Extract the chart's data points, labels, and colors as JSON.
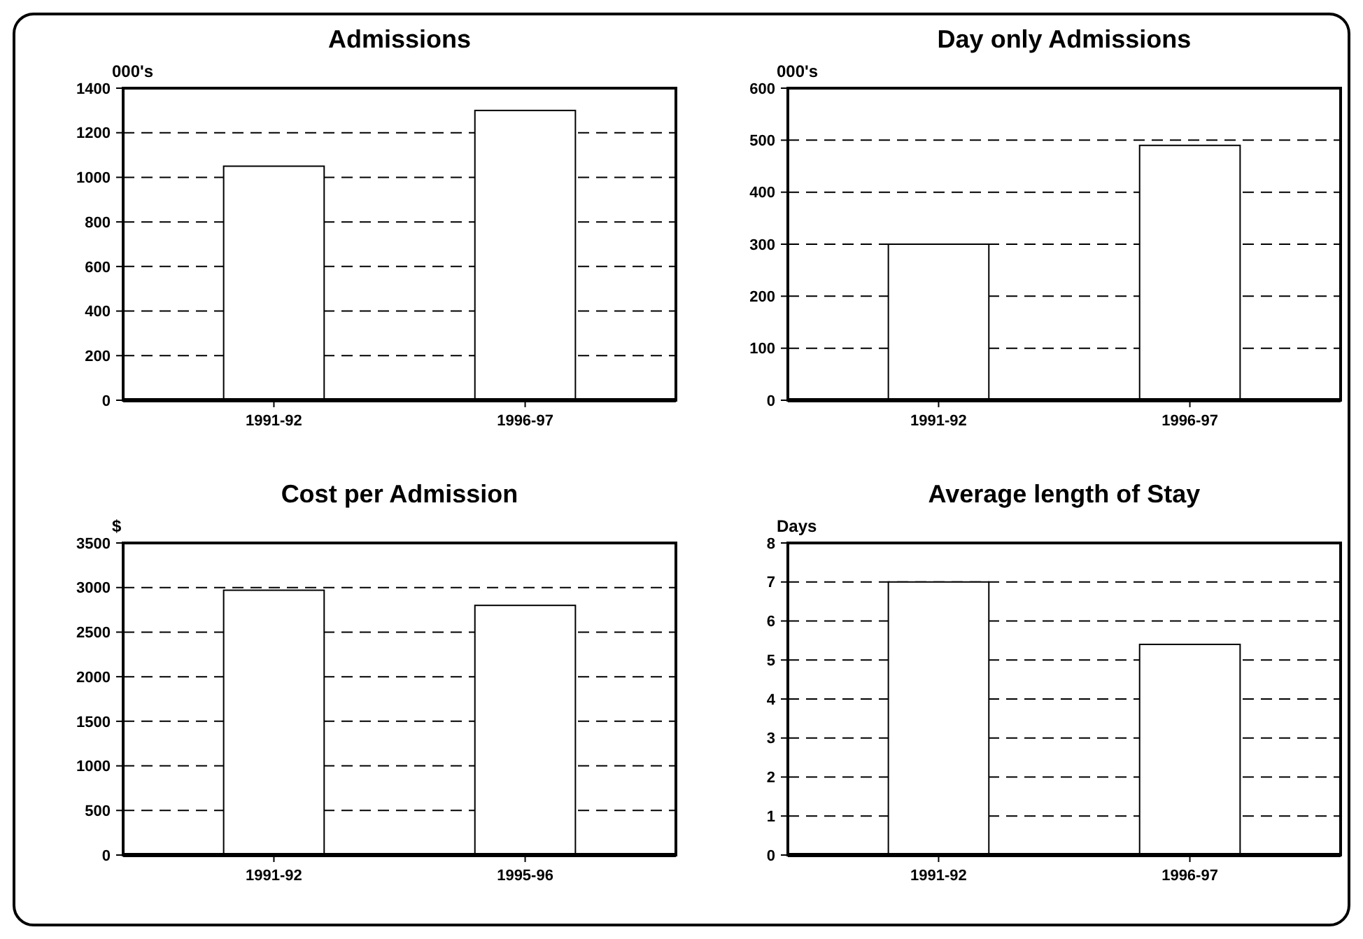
{
  "chart_data": [
    {
      "type": "bar",
      "title": "Admissions",
      "ylabel": "000's",
      "categories": [
        "1991-92",
        "1996-97"
      ],
      "values": [
        1050,
        1300
      ],
      "color": "#ffffff",
      "ylim": [
        0,
        1400
      ],
      "yticks": [
        0,
        200,
        400,
        600,
        800,
        1000,
        1200,
        1400
      ],
      "grid": "y"
    },
    {
      "type": "bar",
      "title": "Day only Admissions",
      "ylabel": "000's",
      "categories": [
        "1991-92",
        "1996-97"
      ],
      "values": [
        300,
        490
      ],
      "color": "#ffffff",
      "ylim": [
        0,
        600
      ],
      "yticks": [
        0,
        100,
        200,
        300,
        400,
        500,
        600
      ],
      "grid": "y"
    },
    {
      "type": "bar",
      "title": "Cost per Admission",
      "ylabel": "$",
      "categories": [
        "1991-92",
        "1995-96"
      ],
      "values": [
        2970,
        2800
      ],
      "color": "#ffffff",
      "ylim": [
        0,
        3500
      ],
      "yticks": [
        0,
        500,
        1000,
        1500,
        2000,
        2500,
        3000,
        3500
      ],
      "grid": "y"
    },
    {
      "type": "bar",
      "title": "Average length of Stay",
      "ylabel": "Days",
      "categories": [
        "1991-92",
        "1996-97"
      ],
      "values": [
        7,
        5.4
      ],
      "color": "#ffffff",
      "ylim": [
        0,
        8
      ],
      "yticks": [
        0,
        1,
        2,
        3,
        4,
        5,
        6,
        7,
        8
      ],
      "grid": "y"
    }
  ]
}
